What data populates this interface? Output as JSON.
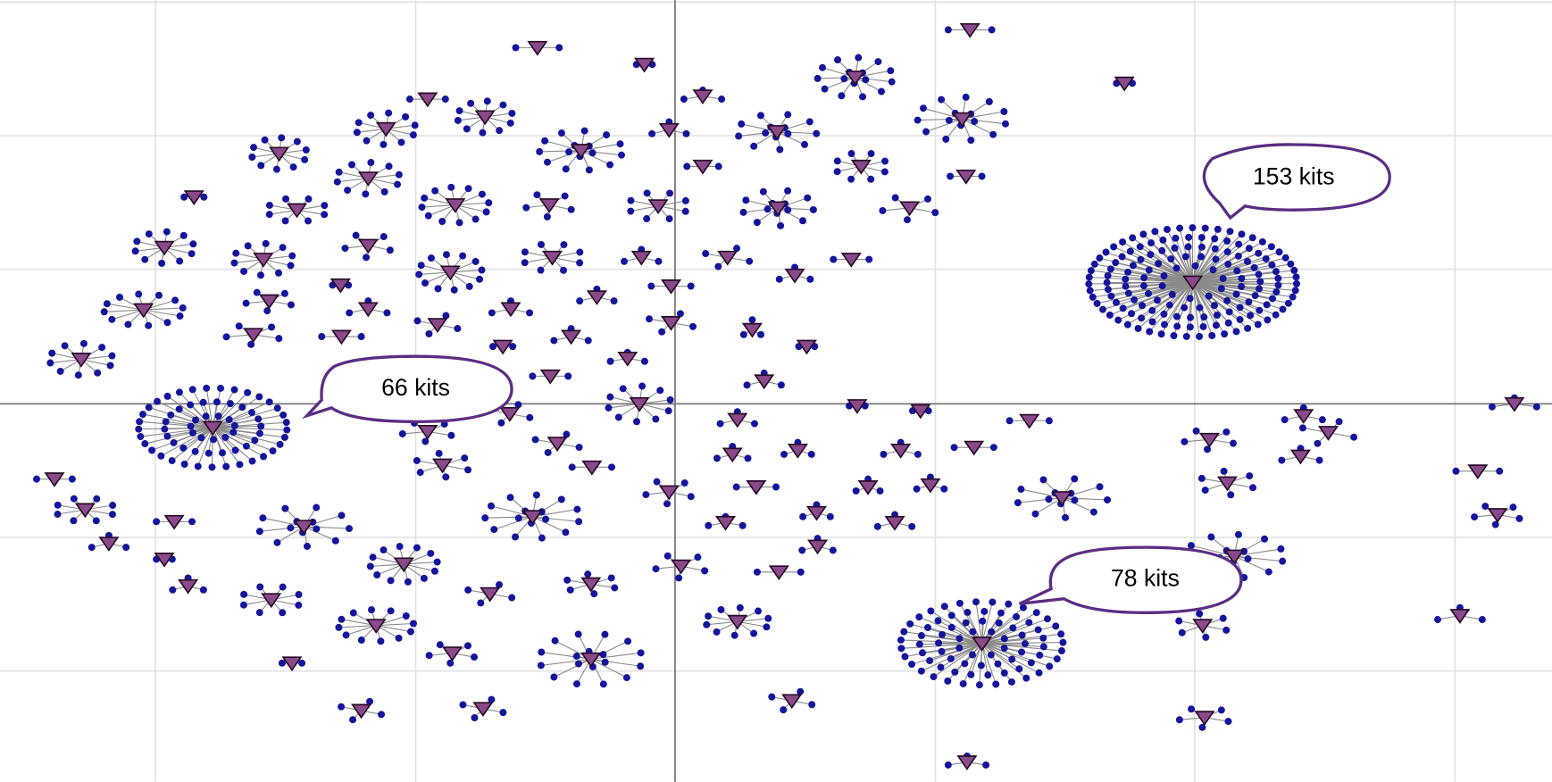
{
  "callouts": [
    {
      "label": "153 kits"
    },
    {
      "label": "66 kits"
    },
    {
      "label": "78 kits"
    }
  ]
}
